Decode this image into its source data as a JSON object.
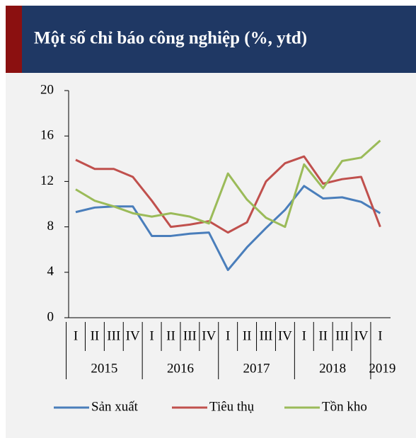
{
  "chart_data": {
    "type": "line",
    "title": "Một số chỉ báo công nghiệp (%, ytd)",
    "categories": [
      "I",
      "II",
      "III",
      "IV",
      "I",
      "II",
      "III",
      "IV",
      "I",
      "II",
      "III",
      "IV",
      "I",
      "II",
      "III",
      "IV",
      "I"
    ],
    "years": [
      "2015",
      "2016",
      "2017",
      "2018",
      "2019"
    ],
    "series": [
      {
        "name": "Sản xuất",
        "color": "#4a7ebb",
        "values": [
          9.3,
          9.7,
          9.8,
          9.8,
          7.2,
          7.2,
          7.4,
          7.5,
          4.2,
          6.2,
          7.9,
          9.5,
          11.6,
          10.5,
          10.6,
          10.2,
          9.2
        ]
      },
      {
        "name": "Tiêu thụ",
        "color": "#c0504d",
        "values": [
          13.9,
          13.1,
          13.1,
          12.4,
          10.3,
          8.0,
          8.2,
          8.5,
          7.5,
          8.4,
          12.0,
          13.6,
          14.2,
          11.8,
          12.2,
          12.4,
          8.0
        ]
      },
      {
        "name": "Tồn kho",
        "color": "#9bbb59",
        "values": [
          11.3,
          10.3,
          9.8,
          9.2,
          8.9,
          9.2,
          8.9,
          8.3,
          12.7,
          10.4,
          8.8,
          8.0,
          13.5,
          11.4,
          13.8,
          14.1,
          15.6
        ]
      }
    ],
    "ylim": [
      0,
      20
    ],
    "yticks": [
      0,
      4,
      8,
      12,
      16,
      20
    ],
    "legend": "bottom"
  }
}
